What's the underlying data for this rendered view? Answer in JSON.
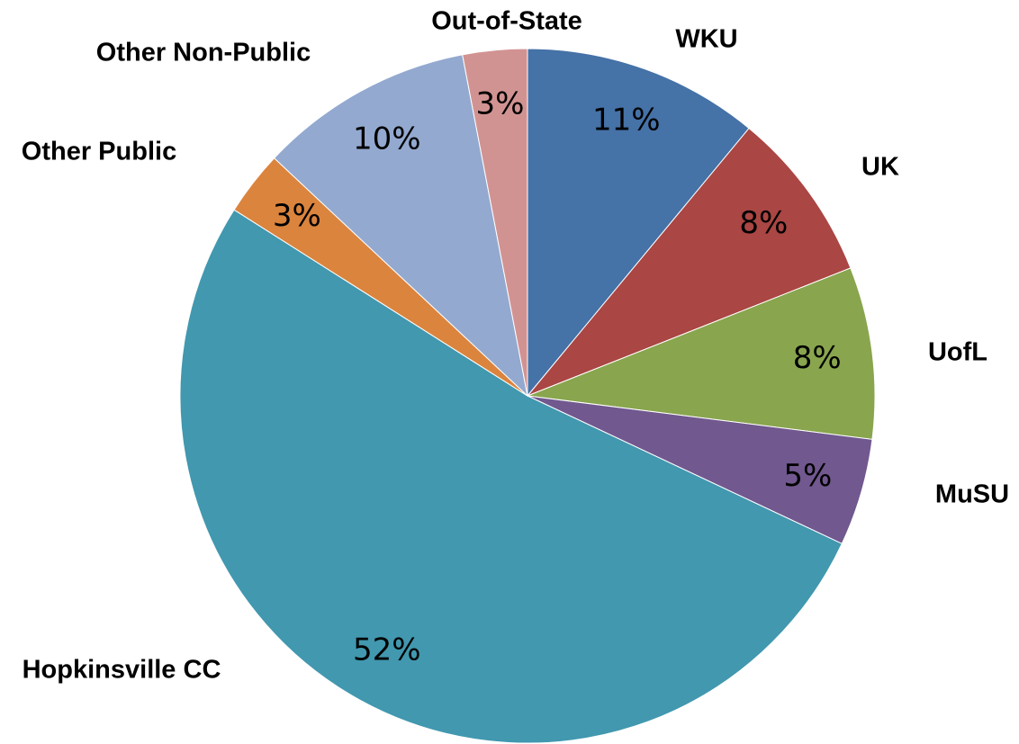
{
  "chart_data": {
    "type": "pie",
    "categories": [
      "WKU",
      "UK",
      "UofL",
      "MuSU",
      "Hopkinsville  CC",
      "Other Public",
      "Other Non-Public",
      "Out-of-State"
    ],
    "values": [
      11,
      8,
      8,
      5,
      52,
      3,
      10,
      3
    ],
    "value_labels": [
      "11%",
      "8%",
      "8%",
      "5%",
      "52%",
      "3%",
      "10%",
      "3%"
    ],
    "colors": [
      "#4572a7",
      "#aa4643",
      "#89a54e",
      "#71588f",
      "#4198af",
      "#db843d",
      "#93a9cf",
      "#d19392"
    ]
  }
}
